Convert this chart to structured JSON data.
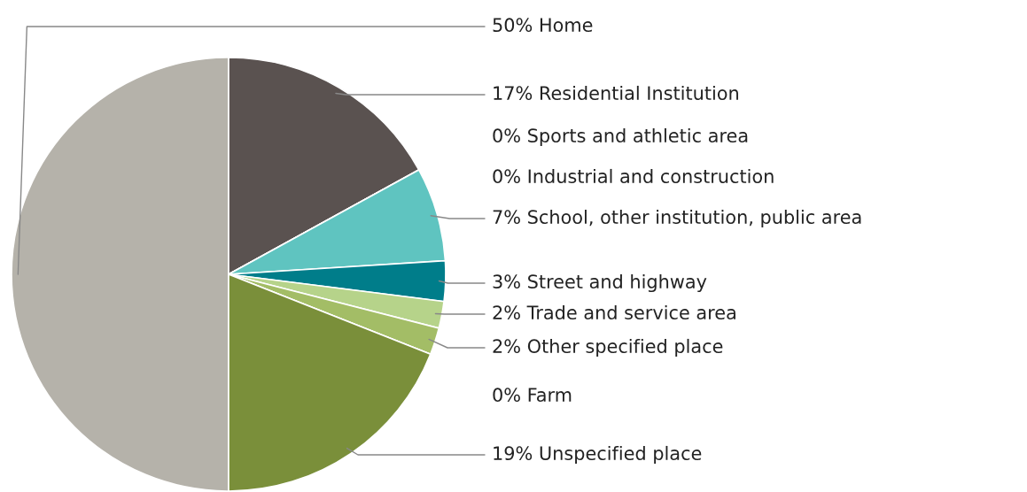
{
  "chart_data": {
    "type": "pie",
    "categories": [
      "Home",
      "Residential Institution",
      "Sports and athletic area",
      "Industrial and construction",
      "School, other institution, public area",
      "Street and highway",
      "Trade and service area",
      "Other specified place",
      "Farm",
      "Unspecified place"
    ],
    "values": [
      50,
      17,
      0,
      0,
      7,
      3,
      2,
      2,
      0,
      19
    ],
    "value_labels": [
      "50%",
      "17%",
      "0%",
      "0%",
      "7%",
      "3%",
      "2%",
      "2%",
      "0%",
      "19%"
    ],
    "colors": [
      "#b5b2aa",
      "#5a5250",
      "#8c8c8c",
      "#6e6e6e",
      "#5fc4c0",
      "#007d8a",
      "#b6d38a",
      "#a3bd66",
      "#9aa86a",
      "#7a8f3a"
    ],
    "legend": false
  }
}
